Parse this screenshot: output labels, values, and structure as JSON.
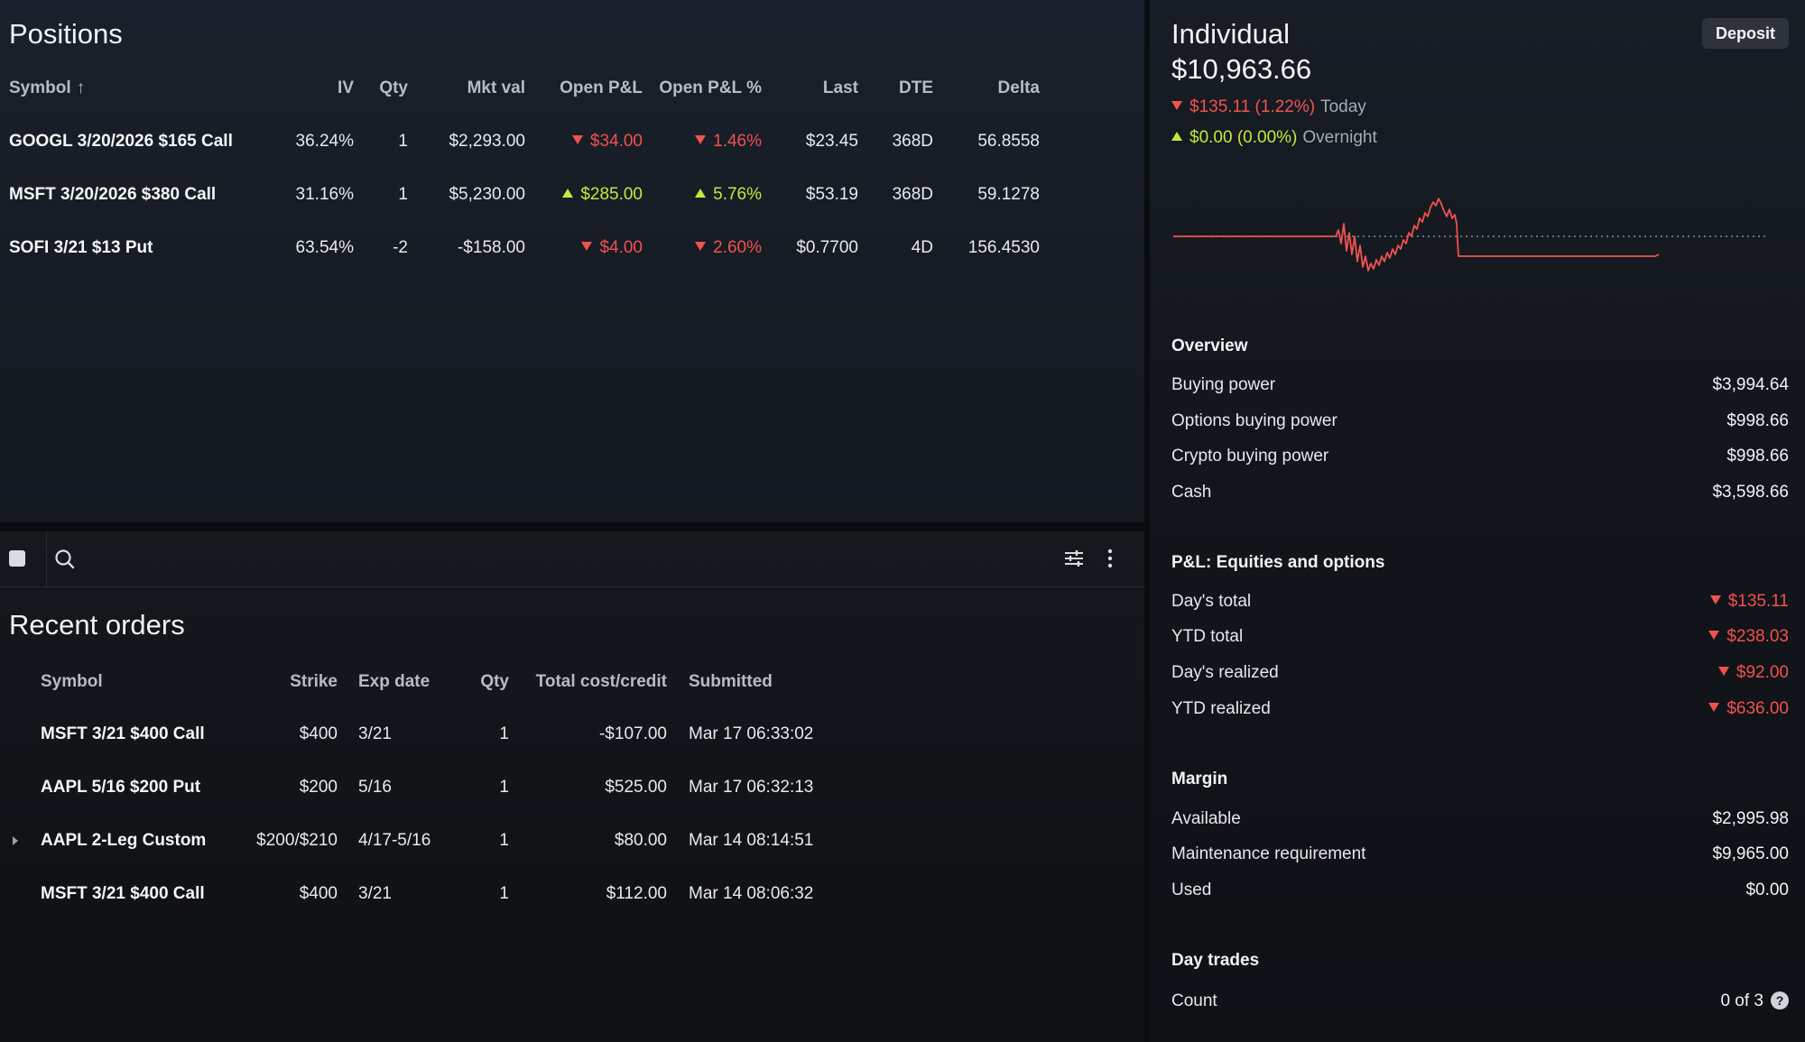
{
  "positions": {
    "title": "Positions",
    "columns": {
      "symbol": "Symbol",
      "sort_arrow": "↑",
      "iv": "IV",
      "qty": "Qty",
      "mkt_val": "Mkt val",
      "open_pl": "Open P&L",
      "open_pl_pct": "Open P&L %",
      "last": "Last",
      "dte": "DTE",
      "delta": "Delta"
    },
    "rows": [
      {
        "symbol": "GOOGL 3/20/2026 $165 Call",
        "iv": "36.24%",
        "qty": "1",
        "mkt_val": "$2,293.00",
        "open_pl": "$34.00",
        "open_pl_pct": "1.46%",
        "direction": "down",
        "last": "$23.45",
        "dte": "368D",
        "delta": "56.8558"
      },
      {
        "symbol": "MSFT 3/20/2026 $380 Call",
        "iv": "31.16%",
        "qty": "1",
        "mkt_val": "$5,230.00",
        "open_pl": "$285.00",
        "open_pl_pct": "5.76%",
        "direction": "up",
        "last": "$53.19",
        "dte": "368D",
        "delta": "59.1278"
      },
      {
        "symbol": "SOFI 3/21 $13 Put",
        "iv": "63.54%",
        "qty": "-2",
        "mkt_val": "-$158.00",
        "open_pl": "$4.00",
        "open_pl_pct": "2.60%",
        "direction": "down",
        "last": "$0.7700",
        "dte": "4D",
        "delta": "156.4530"
      }
    ]
  },
  "toolbar": {
    "icons": [
      "stop-icon",
      "search-icon",
      "sliders-icon",
      "more-vertical-icon"
    ]
  },
  "orders": {
    "title": "Recent orders",
    "columns": {
      "symbol": "Symbol",
      "strike": "Strike",
      "exp_date": "Exp date",
      "qty": "Qty",
      "total": "Total cost/credit",
      "submitted": "Submitted"
    },
    "rows": [
      {
        "symbol": "MSFT 3/21 $400 Call",
        "strike": "$400",
        "exp_date": "3/21",
        "qty": "1",
        "total": "-$107.00",
        "submitted": "Mar 17 06:33:02",
        "expandable": false
      },
      {
        "symbol": "AAPL 5/16 $200 Put",
        "strike": "$200",
        "exp_date": "5/16",
        "qty": "1",
        "total": "$525.00",
        "submitted": "Mar 17 06:32:13",
        "expandable": false
      },
      {
        "symbol": "AAPL 2-Leg Custom",
        "strike": "$200/$210",
        "exp_date": "4/17-5/16",
        "qty": "1",
        "total": "$80.00",
        "submitted": "Mar 14 08:14:51",
        "expandable": true
      },
      {
        "symbol": "MSFT 3/21 $400 Call",
        "strike": "$400",
        "exp_date": "3/21",
        "qty": "1",
        "total": "$112.00",
        "submitted": "Mar 14 08:06:32",
        "expandable": false
      }
    ]
  },
  "account": {
    "name": "Individual",
    "value": "$10,963.66",
    "deposit_label": "Deposit",
    "today": {
      "amount": "$135.11 (1.22%)",
      "label": "Today",
      "direction": "down"
    },
    "overnight": {
      "amount": "$0.00 (0.00%)",
      "label": "Overnight",
      "direction": "up"
    },
    "chart_colors": {
      "line": "#f0524f",
      "baseline": "#8a8f97"
    },
    "overview": {
      "title": "Overview",
      "items": [
        {
          "label": "Buying power",
          "value": "$3,994.64"
        },
        {
          "label": "Options buying power",
          "value": "$998.66"
        },
        {
          "label": "Crypto buying power",
          "value": "$998.66"
        },
        {
          "label": "Cash",
          "value": "$3,598.66"
        }
      ]
    },
    "pnl": {
      "title": "P&L: Equities and options",
      "items": [
        {
          "label": "Day's total",
          "value": "$135.11"
        },
        {
          "label": "YTD total",
          "value": "$238.03"
        },
        {
          "label": "Day's realized",
          "value": "$92.00"
        },
        {
          "label": "YTD realized",
          "value": "$636.00"
        }
      ]
    },
    "margin": {
      "title": "Margin",
      "items": [
        {
          "label": "Available",
          "value": "$2,995.98"
        },
        {
          "label": "Maintenance requirement",
          "value": "$9,965.00"
        },
        {
          "label": "Used",
          "value": "$0.00"
        }
      ]
    },
    "day_trades": {
      "title": "Day trades",
      "count_label": "Count",
      "count_value": "0 of 3",
      "help": "?"
    }
  },
  "colors": {
    "negative": "#f0524f",
    "positive": "#c4e83a"
  }
}
